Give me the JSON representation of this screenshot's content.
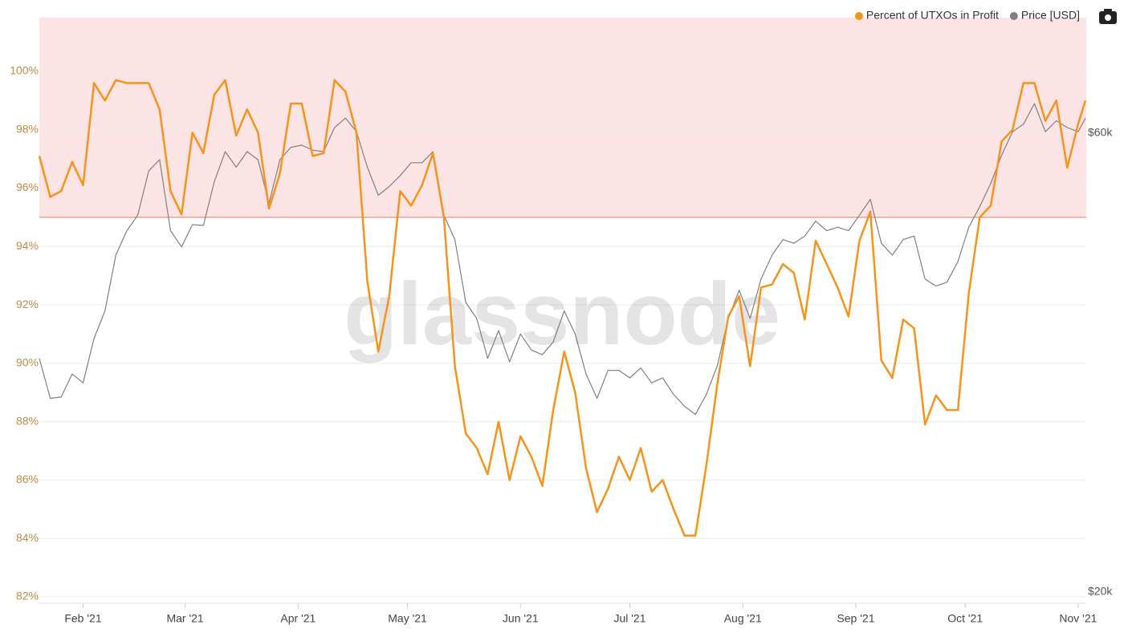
{
  "chart_data": {
    "type": "line",
    "watermark": "glassnode",
    "x": [
      0,
      3,
      6,
      9,
      12,
      15,
      18,
      21,
      24,
      27,
      30,
      33,
      36,
      39,
      42,
      45,
      48,
      51,
      54,
      57,
      60,
      63,
      66,
      69,
      72,
      75,
      78,
      81,
      84,
      87,
      90,
      93,
      96,
      99,
      102,
      105,
      108,
      111,
      114,
      117,
      120,
      123,
      126,
      129,
      132,
      135,
      138,
      141,
      144,
      147,
      150,
      153,
      156,
      159,
      162,
      165,
      168,
      171,
      174,
      177,
      180,
      183,
      186,
      189,
      192,
      195,
      198,
      201,
      204,
      207,
      210,
      213,
      216,
      219,
      222,
      225,
      228,
      231,
      234,
      237,
      240,
      243,
      246,
      249,
      252,
      255,
      258,
      261,
      264,
      267,
      270,
      273,
      276,
      279,
      282,
      285,
      287
    ],
    "xlim": [
      0,
      287
    ],
    "xticks": [
      {
        "value": 12,
        "label": "Feb '21"
      },
      {
        "value": 40,
        "label": "Mar '21"
      },
      {
        "value": 71,
        "label": "Apr '21"
      },
      {
        "value": 101,
        "label": "May '21"
      },
      {
        "value": 132,
        "label": "Jun '21"
      },
      {
        "value": 162,
        "label": "Jul '21"
      },
      {
        "value": 193,
        "label": "Aug '21"
      },
      {
        "value": 224,
        "label": "Sep '21"
      },
      {
        "value": 254,
        "label": "Oct '21"
      },
      {
        "value": 285,
        "label": "Nov '21"
      }
    ],
    "ylim": [
      81.78,
      101.84
    ],
    "yticks": [
      {
        "value": 82,
        "label": "82%"
      },
      {
        "value": 84,
        "label": "84%"
      },
      {
        "value": 86,
        "label": "86%"
      },
      {
        "value": 88,
        "label": "88%"
      },
      {
        "value": 90,
        "label": "90%"
      },
      {
        "value": 92,
        "label": "92%"
      },
      {
        "value": 94,
        "label": "94%"
      },
      {
        "value": 96,
        "label": "96%"
      },
      {
        "value": 98,
        "label": "98%"
      },
      {
        "value": 100,
        "label": "100%"
      }
    ],
    "y2lim": [
      19470,
      79100
    ],
    "y2log": true,
    "y2ticks": [
      {
        "value": 20000,
        "label": "$20k"
      },
      {
        "value": 60000,
        "label": "$60k"
      }
    ],
    "grid": true,
    "highlight_from": 95,
    "highlight_color": "#fde4e4",
    "highlight_line_color": "#e8837a",
    "legend": "top-right",
    "series": [
      {
        "name": "Percent of UTXOs in Profit",
        "color": "#f7931a",
        "values": [
          97.1,
          95.7,
          95.9,
          96.9,
          96.1,
          99.6,
          99.0,
          99.7,
          99.6,
          99.6,
          99.6,
          98.7,
          95.9,
          95.1,
          97.9,
          97.2,
          99.2,
          99.7,
          97.8,
          98.7,
          97.9,
          95.3,
          96.5,
          98.9,
          98.9,
          97.1,
          97.2,
          99.7,
          99.3,
          97.9,
          92.8,
          90.4,
          92.3,
          95.9,
          95.4,
          96.1,
          97.2,
          95.0,
          89.9,
          87.6,
          87.1,
          86.2,
          88.0,
          86.0,
          87.5,
          86.8,
          85.8,
          88.4,
          90.4,
          89.0,
          86.4,
          84.9,
          85.7,
          86.8,
          86.0,
          87.1,
          85.6,
          86.0,
          85.0,
          84.1,
          84.1,
          86.5,
          89.3,
          91.6,
          92.3,
          89.9,
          92.6,
          92.7,
          93.4,
          93.1,
          91.5,
          94.2,
          93.4,
          92.6,
          91.6,
          94.2,
          95.2,
          90.1,
          89.5,
          91.5,
          91.2,
          87.9,
          88.9,
          88.4,
          88.4,
          92.4,
          95.0,
          95.4,
          97.6,
          98.0,
          99.6,
          99.6,
          98.3,
          99.0,
          96.7,
          98.2,
          99.0
        ]
      },
      {
        "name": "Price [USD]",
        "color": "#808080",
        "axis": "y2",
        "values": [
          35000,
          31800,
          31900,
          33700,
          33000,
          36700,
          39200,
          44800,
          47500,
          49300,
          54800,
          56300,
          47500,
          45700,
          48200,
          48100,
          53400,
          57400,
          55300,
          57400,
          56300,
          50700,
          56300,
          58000,
          58300,
          57600,
          57400,
          60800,
          62200,
          60200,
          55300,
          51700,
          52800,
          54200,
          55900,
          55900,
          57400,
          49300,
          46500,
          40000,
          38500,
          35000,
          37400,
          34700,
          37100,
          35700,
          35300,
          36400,
          39200,
          37100,
          33700,
          31800,
          34000,
          34000,
          33400,
          34200,
          33000,
          33400,
          32100,
          31200,
          30600,
          32100,
          34400,
          38500,
          41200,
          38500,
          42300,
          44800,
          46500,
          46100,
          46900,
          48600,
          47500,
          47900,
          47500,
          49300,
          51200,
          46100,
          44800,
          46500,
          46900,
          42300,
          41600,
          42000,
          44100,
          47900,
          50300,
          53200,
          56900,
          60200,
          61300,
          64400,
          60200,
          61800,
          60800,
          60200,
          62200
        ]
      }
    ]
  }
}
